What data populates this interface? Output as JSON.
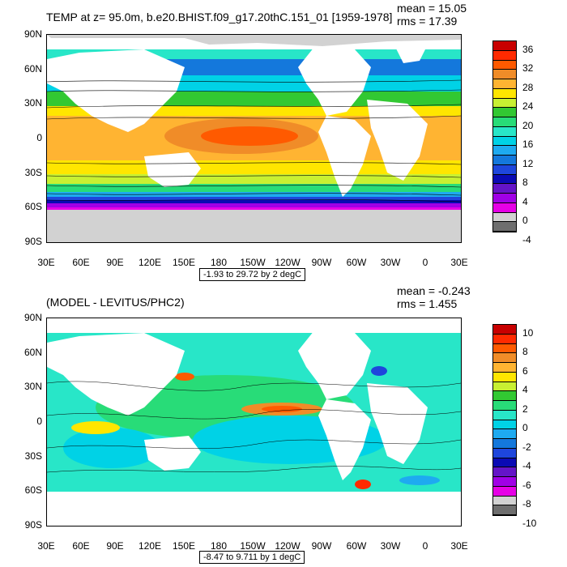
{
  "panel1": {
    "title": "TEMP at z=  95.0m, b.e20.BHIST.f09_g17.20thC.151_01 [1959-1978]",
    "mean": "mean = 15.05",
    "rms": "rms = 17.39",
    "range_note": "-1.93 to 29.72 by 2 degC",
    "colorbar_labels": [
      "36",
      "32",
      "28",
      "24",
      "20",
      "16",
      "12",
      "8",
      "4",
      "0",
      "-4"
    ],
    "colorbar_colors": [
      "#c80000",
      "#ff2a00",
      "#ff5a00",
      "#f08c28",
      "#ffb432",
      "#ffe600",
      "#c8f032",
      "#32c832",
      "#28dc78",
      "#28e6c8",
      "#00d2e6",
      "#1eaaf0",
      "#1478dc",
      "#1e46dc",
      "#0a0ab4",
      "#6414c8",
      "#a000e6",
      "#e600e6",
      "#d2d2d2",
      "#6e6e6e"
    ]
  },
  "panel2": {
    "title": "(MODEL - LEVITUS/PHC2)",
    "mean": "mean = -0.243",
    "rms": "rms = 1.455",
    "range_note": "-8.47 to 9.711 by 1 degC",
    "colorbar_labels": [
      "10",
      "8",
      "6",
      "4",
      "2",
      "0",
      "-2",
      "-4",
      "-6",
      "-8",
      "-10"
    ],
    "colorbar_colors": [
      "#c80000",
      "#ff2a00",
      "#ff5a00",
      "#f08c28",
      "#ffb432",
      "#ffe600",
      "#c8f032",
      "#32c832",
      "#28dc78",
      "#28e6c8",
      "#00d2e6",
      "#1eaaf0",
      "#1478dc",
      "#1e46dc",
      "#0a0ab4",
      "#6414c8",
      "#a000e6",
      "#e600e6",
      "#d2d2d2",
      "#6e6e6e"
    ]
  },
  "axes": {
    "lat_labels": [
      "90N",
      "60N",
      "30N",
      "0",
      "30S",
      "60S",
      "90S"
    ],
    "lon_labels": [
      "30E",
      "60E",
      "90E",
      "120E",
      "150E",
      "180",
      "150W",
      "120W",
      "90W",
      "60W",
      "30W",
      "0",
      "30E"
    ]
  }
}
